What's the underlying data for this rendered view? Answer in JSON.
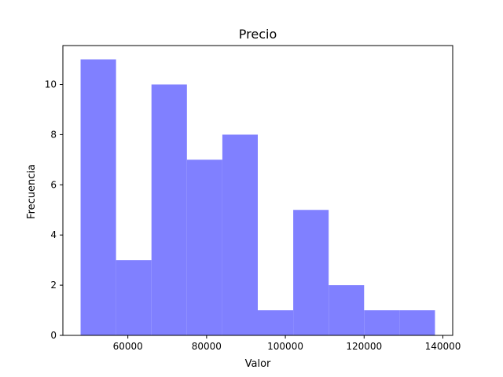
{
  "chart_data": {
    "type": "bar",
    "subtype": "histogram",
    "title": "Precio",
    "xlabel": "Valor",
    "ylabel": "Frecuencia",
    "bins": [
      {
        "x0": 48000,
        "x1": 57000,
        "count": 11
      },
      {
        "x0": 57000,
        "x1": 66000,
        "count": 3
      },
      {
        "x0": 66000,
        "x1": 75000,
        "count": 10
      },
      {
        "x0": 75000,
        "x1": 84000,
        "count": 7
      },
      {
        "x0": 84000,
        "x1": 93000,
        "count": 8
      },
      {
        "x0": 93000,
        "x1": 102000,
        "count": 1
      },
      {
        "x0": 102000,
        "x1": 111000,
        "count": 5
      },
      {
        "x0": 111000,
        "x1": 120000,
        "count": 2
      },
      {
        "x0": 120000,
        "x1": 129000,
        "count": 1
      },
      {
        "x0": 129000,
        "x1": 138000,
        "count": 1
      }
    ],
    "xlim": [
      43500,
      142500
    ],
    "ylim": [
      0,
      11.55
    ],
    "xticks": [
      60000,
      80000,
      100000,
      120000,
      140000
    ],
    "yticks": [
      0,
      2,
      4,
      6,
      8,
      10
    ],
    "bar_color": "#8080ff",
    "grid": false,
    "legend": "none"
  }
}
